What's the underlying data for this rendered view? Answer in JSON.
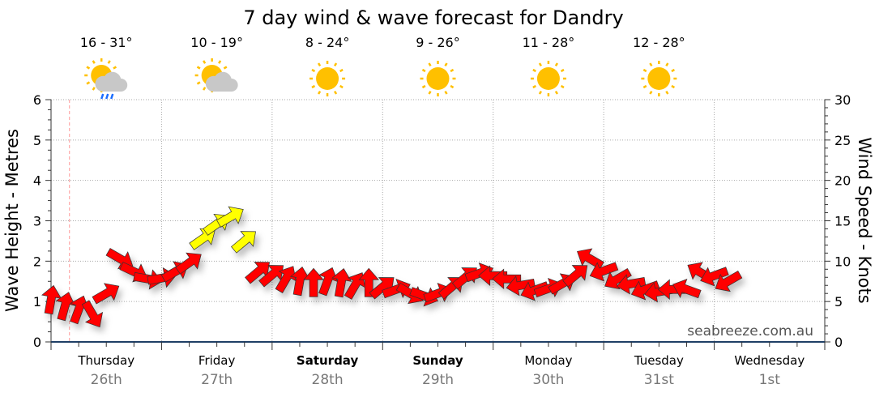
{
  "chart_data": {
    "type": "scatter",
    "title": "7 day wind & wave forecast for Dandry",
    "ylabel_left": "Wave Height - Metres",
    "ylabel_right": "Wind Speed - Knots",
    "ylim_left": [
      0,
      6
    ],
    "ylim_right": [
      0,
      30
    ],
    "left_ticks": [
      "0",
      "1",
      "2",
      "3",
      "4",
      "5",
      "6"
    ],
    "right_ticks": [
      "0",
      "5",
      "10",
      "15",
      "20",
      "25",
      "30"
    ],
    "grid": true,
    "watermark": "seabreeze.com.au",
    "days": [
      {
        "name": "Thursday",
        "date": "26th",
        "weekend": false,
        "temp": "16 - 31°",
        "weather": "sun-cloud-rain"
      },
      {
        "name": "Friday",
        "date": "27th",
        "weekend": false,
        "temp": "10 - 19°",
        "weather": "sun-cloud"
      },
      {
        "name": "Saturday",
        "date": "28th",
        "weekend": true,
        "temp": "8 - 24°",
        "weather": "sun"
      },
      {
        "name": "Sunday",
        "date": "29th",
        "weekend": true,
        "temp": "9 - 26°",
        "weather": "sun"
      },
      {
        "name": "Monday",
        "date": "30th",
        "weekend": false,
        "temp": "11 - 28°",
        "weather": "sun"
      },
      {
        "name": "Tuesday",
        "date": "31st",
        "weekend": false,
        "temp": "12 - 28°",
        "weather": "sun"
      },
      {
        "name": "Wednesday",
        "date": "1st",
        "weekend": false
      }
    ],
    "now_hour": 4,
    "wind_columns": [
      "hour",
      "knots",
      "arrow_angle_deg"
    ],
    "wind": [
      [
        0,
        5.2,
        -80
      ],
      [
        3,
        4.4,
        -75
      ],
      [
        6,
        4.0,
        -70
      ],
      [
        9,
        3.4,
        60
      ],
      [
        12,
        6.0,
        -30
      ],
      [
        15,
        10.3,
        30
      ],
      [
        18,
        8.7,
        25
      ],
      [
        21,
        7.8,
        10
      ],
      [
        24,
        7.9,
        -10
      ],
      [
        27,
        8.7,
        -30
      ],
      [
        30,
        9.8,
        -35
      ],
      [
        33,
        12.8,
        -35
      ],
      [
        36,
        14.6,
        -35
      ],
      [
        39,
        15.5,
        -30
      ],
      [
        42,
        12.5,
        -40
      ],
      [
        45,
        8.7,
        -40
      ],
      [
        48,
        8.3,
        -40
      ],
      [
        51,
        7.8,
        -60
      ],
      [
        54,
        7.5,
        -80
      ],
      [
        57,
        7.3,
        -90
      ],
      [
        60,
        7.5,
        -70
      ],
      [
        63,
        7.3,
        -80
      ],
      [
        66,
        7.0,
        -60
      ],
      [
        69,
        7.3,
        -90
      ],
      [
        72,
        6.8,
        -40
      ],
      [
        75,
        6.5,
        -20
      ],
      [
        78,
        6.0,
        30
      ],
      [
        81,
        5.7,
        20
      ],
      [
        84,
        6.0,
        -20
      ],
      [
        87,
        6.8,
        -40
      ],
      [
        90,
        8.0,
        -40
      ],
      [
        93,
        8.5,
        -20
      ],
      [
        96,
        8.2,
        180
      ],
      [
        99,
        7.8,
        180
      ],
      [
        102,
        7.0,
        170
      ],
      [
        105,
        6.4,
        160
      ],
      [
        108,
        6.6,
        -20
      ],
      [
        111,
        7.2,
        -30
      ],
      [
        114,
        8.3,
        -40
      ],
      [
        117,
        10.3,
        -150
      ],
      [
        120,
        8.8,
        160
      ],
      [
        123,
        7.8,
        150
      ],
      [
        126,
        7.2,
        170
      ],
      [
        129,
        6.5,
        160
      ],
      [
        132,
        6.2,
        170
      ],
      [
        135,
        6.5,
        180
      ],
      [
        138,
        6.5,
        200
      ],
      [
        141,
        8.6,
        -150
      ],
      [
        144,
        8.2,
        160
      ],
      [
        147,
        7.5,
        150
      ]
    ],
    "colors": {
      "calm": "#ff0000",
      "moderate": "#ffff00",
      "now_line": "#ff9999"
    },
    "moderate_threshold_knots": 12
  }
}
